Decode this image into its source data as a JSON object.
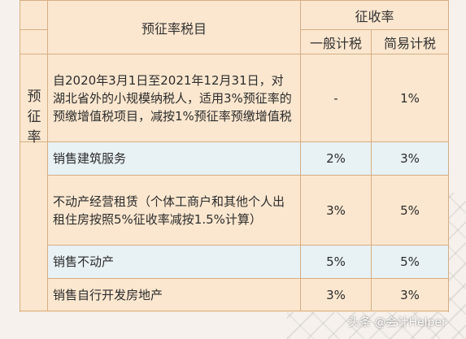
{
  "header": {
    "item_col": "预征率税目",
    "rate_group": "征收率",
    "general_tax": "一般计税",
    "simple_tax": "简易计税"
  },
  "side_label": "预征率",
  "rows": [
    {
      "item": "自2020年3月1日至2021年12月31日，对湖北省外的小规模纳税人，适用3%预征率的预缴增值税项目，减按1%预征率预缴增值税",
      "general": "-",
      "simple": "1%"
    },
    {
      "item": "销售建筑服务",
      "general": "2%",
      "simple": "3%"
    },
    {
      "item": "不动产经营租赁（个体工商户和其他个人出租住房按照5%征收率减按1.5%计算）",
      "general": "3%",
      "simple": "5%"
    },
    {
      "item": "销售不动产",
      "general": "5%",
      "simple": "5%"
    },
    {
      "item": "销售自行开发房地产",
      "general": "3%",
      "simple": "3%"
    }
  ],
  "watermark": "头条 @会计Helper"
}
